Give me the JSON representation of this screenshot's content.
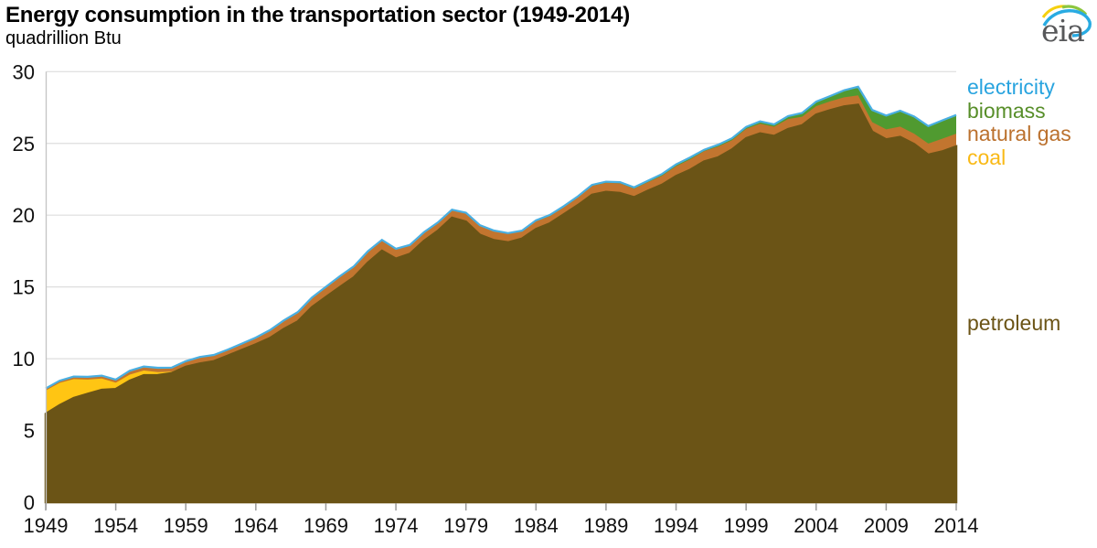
{
  "header": {
    "title": "Energy consumption in the transportation sector (1949-2014)",
    "subtitle": "quadrillion Btu"
  },
  "logo": {
    "text": "eia"
  },
  "legend": {
    "items": [
      {
        "label": "electricity",
        "color": "#29A4DF"
      },
      {
        "label": "biomass",
        "color": "#578E29"
      },
      {
        "label": "natural gas",
        "color": "#BB712E"
      },
      {
        "label": "coal",
        "color": "#F9B916"
      }
    ],
    "area_label": {
      "label": "petroleum",
      "color": "#6B5416"
    }
  },
  "chart_data": {
    "type": "area",
    "stacked": true,
    "title": "Energy consumption in the transportation sector (1949-2014)",
    "units": "quadrillion Btu",
    "xlabel": "",
    "ylabel": "quadrillion Btu",
    "ylim": [
      0,
      30
    ],
    "y_ticks": [
      0,
      5,
      10,
      15,
      20,
      25,
      30
    ],
    "x_ticks": [
      1949,
      1954,
      1959,
      1964,
      1969,
      1974,
      1979,
      1984,
      1989,
      1994,
      1999,
      2004,
      2009,
      2014
    ],
    "grid": "horizontal",
    "grid_color": "#dedede",
    "axis_color": "#9b9b9b",
    "legend_position": "right",
    "x": [
      1949,
      1950,
      1951,
      1952,
      1953,
      1954,
      1955,
      1956,
      1957,
      1958,
      1959,
      1960,
      1961,
      1962,
      1963,
      1964,
      1965,
      1966,
      1967,
      1968,
      1969,
      1970,
      1971,
      1972,
      1973,
      1974,
      1975,
      1976,
      1977,
      1978,
      1979,
      1980,
      1981,
      1982,
      1983,
      1984,
      1985,
      1986,
      1987,
      1988,
      1989,
      1990,
      1991,
      1992,
      1993,
      1994,
      1995,
      1996,
      1997,
      1998,
      1999,
      2000,
      2001,
      2002,
      2003,
      2004,
      2005,
      2006,
      2007,
      2008,
      2009,
      2010,
      2011,
      2012,
      2013,
      2014
    ],
    "series": [
      {
        "name": "petroleum",
        "color": "#6B5416",
        "values": [
          6.16,
          6.76,
          7.26,
          7.55,
          7.83,
          7.89,
          8.47,
          8.85,
          8.86,
          9.0,
          9.43,
          9.67,
          9.83,
          10.21,
          10.61,
          11.0,
          11.44,
          12.07,
          12.6,
          13.59,
          14.3,
          14.99,
          15.67,
          16.69,
          17.53,
          16.97,
          17.31,
          18.21,
          18.91,
          19.82,
          19.55,
          18.63,
          18.26,
          18.11,
          18.37,
          19.04,
          19.43,
          20.07,
          20.71,
          21.42,
          21.62,
          21.54,
          21.25,
          21.71,
          22.12,
          22.72,
          23.16,
          23.74,
          24.02,
          24.58,
          25.36,
          25.7,
          25.52,
          26.0,
          26.26,
          27.01,
          27.31,
          27.58,
          27.69,
          25.81,
          25.28,
          25.45,
          24.95,
          24.21,
          24.44,
          24.79
        ]
      },
      {
        "name": "coal",
        "color": "#FFC513",
        "values": [
          1.62,
          1.56,
          1.32,
          1.0,
          0.79,
          0.44,
          0.42,
          0.33,
          0.21,
          0.1,
          0.06,
          0.07,
          0.04,
          0.02,
          0.01,
          0.01,
          0.01,
          0.01,
          0,
          0,
          0,
          0,
          0,
          0,
          0,
          0,
          0,
          0,
          0,
          0,
          0,
          0,
          0,
          0,
          0,
          0,
          0,
          0,
          0,
          0,
          0,
          0,
          0,
          0,
          0,
          0,
          0,
          0,
          0,
          0,
          0,
          0,
          0,
          0,
          0,
          0,
          0,
          0,
          0,
          0,
          0,
          0,
          0,
          0,
          0,
          0
        ]
      },
      {
        "name": "natural gas",
        "color": "#C2752F",
        "values": [
          0.13,
          0.13,
          0.16,
          0.17,
          0.18,
          0.2,
          0.25,
          0.26,
          0.28,
          0.26,
          0.32,
          0.36,
          0.37,
          0.39,
          0.41,
          0.44,
          0.52,
          0.57,
          0.63,
          0.65,
          0.69,
          0.74,
          0.75,
          0.77,
          0.73,
          0.67,
          0.6,
          0.58,
          0.56,
          0.54,
          0.6,
          0.65,
          0.64,
          0.6,
          0.49,
          0.53,
          0.5,
          0.49,
          0.52,
          0.61,
          0.63,
          0.68,
          0.6,
          0.59,
          0.63,
          0.69,
          0.72,
          0.72,
          0.76,
          0.64,
          0.65,
          0.67,
          0.64,
          0.7,
          0.6,
          0.59,
          0.62,
          0.63,
          0.65,
          0.67,
          0.7,
          0.72,
          0.73,
          0.78,
          0.89,
          0.89
        ]
      },
      {
        "name": "biomass",
        "color": "#509A30",
        "values": [
          0,
          0,
          0,
          0,
          0,
          0,
          0,
          0,
          0,
          0,
          0,
          0,
          0,
          0,
          0,
          0,
          0,
          0,
          0,
          0,
          0,
          0,
          0,
          0,
          0,
          0,
          0,
          0,
          0,
          0,
          0,
          0,
          0.01,
          0.02,
          0.04,
          0.05,
          0.07,
          0.06,
          0.07,
          0.06,
          0.06,
          0.06,
          0.07,
          0.08,
          0.1,
          0.11,
          0.12,
          0.08,
          0.11,
          0.12,
          0.12,
          0.14,
          0.15,
          0.18,
          0.24,
          0.29,
          0.34,
          0.46,
          0.58,
          0.82,
          0.93,
          1.08,
          1.17,
          1.19,
          1.24,
          1.27
        ]
      },
      {
        "name": "electricity",
        "color": "#49AFE2",
        "values": [
          0.02,
          0.02,
          0.02,
          0.02,
          0.02,
          0.02,
          0.02,
          0.02,
          0.02,
          0.02,
          0.02,
          0.02,
          0.02,
          0.02,
          0.02,
          0.02,
          0.02,
          0.02,
          0.02,
          0.02,
          0.02,
          0.02,
          0.02,
          0.02,
          0.02,
          0.02,
          0.02,
          0.02,
          0.02,
          0.02,
          0.02,
          0.02,
          0.02,
          0.02,
          0.02,
          0.02,
          0.02,
          0.02,
          0.02,
          0.02,
          0.02,
          0.02,
          0.02,
          0.02,
          0.02,
          0.02,
          0.02,
          0.02,
          0.02,
          0.02,
          0.02,
          0.02,
          0.02,
          0.02,
          0.02,
          0.02,
          0.03,
          0.03,
          0.03,
          0.03,
          0.03,
          0.03,
          0.03,
          0.03,
          0.03,
          0.03
        ]
      }
    ]
  }
}
